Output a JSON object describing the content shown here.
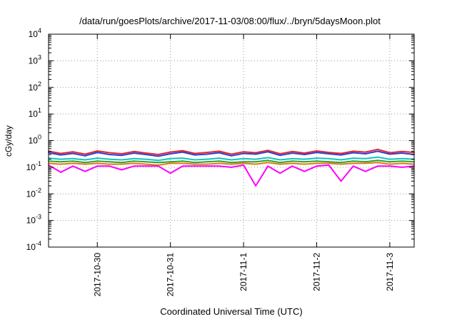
{
  "chart_data": {
    "type": "line",
    "title": "/data/run/goesPlots/archive/2017-11-03/08:00/flux/../bryn/5daysMoon.plot",
    "xlabel": "Coordinated Universal Time (UTC)",
    "ylabel": "cGy/day",
    "yscale": "log",
    "ylim": [
      0.0001,
      10000
    ],
    "xlim": [
      "2017-10-29 08:00",
      "2017-11-03 08:00"
    ],
    "grid": true,
    "y_ticks": [
      {
        "base": "10",
        "exp": "-4"
      },
      {
        "base": "10",
        "exp": "-3"
      },
      {
        "base": "10",
        "exp": "-2"
      },
      {
        "base": "10",
        "exp": "-1"
      },
      {
        "base": "10",
        "exp": "0"
      },
      {
        "base": "10",
        "exp": "1"
      },
      {
        "base": "10",
        "exp": "2"
      },
      {
        "base": "10",
        "exp": "3"
      },
      {
        "base": "10",
        "exp": "4"
      }
    ],
    "x_ticks": [
      {
        "label": "2017-10-30",
        "date": "2017-10-30 00:00"
      },
      {
        "label": "2017-10-31",
        "date": "2017-10-31 00:00"
      },
      {
        "label": "2017-11-1",
        "date": "2017-11-01 00:00"
      },
      {
        "label": "2017-11-2",
        "date": "2017-11-02 00:00"
      },
      {
        "label": "2017-11-3",
        "date": "2017-11-03 00:00"
      }
    ],
    "series": [
      {
        "color": "#e8222c",
        "x": [
          "2017-10-29 08:00",
          "2017-10-29 12:00",
          "2017-10-29 16:00",
          "2017-10-29 20:00",
          "2017-10-30 00:00",
          "2017-10-30 04:00",
          "2017-10-30 08:00",
          "2017-10-30 12:00",
          "2017-10-30 16:00",
          "2017-10-30 20:00",
          "2017-10-31 00:00",
          "2017-10-31 04:00",
          "2017-10-31 08:00",
          "2017-10-31 12:00",
          "2017-10-31 16:00",
          "2017-10-31 20:00",
          "2017-11-01 00:00",
          "2017-11-01 04:00",
          "2017-11-01 08:00",
          "2017-11-01 12:00",
          "2017-11-01 16:00",
          "2017-11-01 20:00",
          "2017-11-02 00:00",
          "2017-11-02 04:00",
          "2017-11-02 08:00",
          "2017-11-02 12:00",
          "2017-11-02 16:00",
          "2017-11-02 20:00",
          "2017-11-03 00:00",
          "2017-11-03 04:00",
          "2017-11-03 08:00"
        ],
        "values": [
          0.4,
          0.33,
          0.38,
          0.31,
          0.41,
          0.35,
          0.32,
          0.39,
          0.34,
          0.3,
          0.37,
          0.42,
          0.33,
          0.36,
          0.4,
          0.31,
          0.38,
          0.35,
          0.43,
          0.32,
          0.39,
          0.34,
          0.41,
          0.36,
          0.33,
          0.4,
          0.37,
          0.47,
          0.35,
          0.39,
          0.36
        ]
      },
      {
        "color": "#2a3fd4",
        "x": [
          "2017-10-29 08:00",
          "2017-10-29 12:00",
          "2017-10-29 16:00",
          "2017-10-29 20:00",
          "2017-10-30 00:00",
          "2017-10-30 04:00",
          "2017-10-30 08:00",
          "2017-10-30 12:00",
          "2017-10-30 16:00",
          "2017-10-30 20:00",
          "2017-10-31 00:00",
          "2017-10-31 04:00",
          "2017-10-31 08:00",
          "2017-10-31 12:00",
          "2017-10-31 16:00",
          "2017-10-31 20:00",
          "2017-11-01 00:00",
          "2017-11-01 04:00",
          "2017-11-01 08:00",
          "2017-11-01 12:00",
          "2017-11-01 16:00",
          "2017-11-01 20:00",
          "2017-11-02 00:00",
          "2017-11-02 04:00",
          "2017-11-02 08:00",
          "2017-11-02 12:00",
          "2017-11-02 16:00",
          "2017-11-02 20:00",
          "2017-11-03 00:00",
          "2017-11-03 04:00",
          "2017-11-03 08:00"
        ],
        "values": [
          0.35,
          0.29,
          0.33,
          0.27,
          0.36,
          0.3,
          0.28,
          0.34,
          0.3,
          0.26,
          0.32,
          0.37,
          0.29,
          0.31,
          0.35,
          0.27,
          0.33,
          0.31,
          0.38,
          0.28,
          0.34,
          0.3,
          0.36,
          0.32,
          0.29,
          0.35,
          0.32,
          0.4,
          0.31,
          0.34,
          0.3
        ]
      },
      {
        "color": "#14c3c3",
        "x": [
          "2017-10-29 08:00",
          "2017-10-29 12:00",
          "2017-10-29 16:00",
          "2017-10-29 20:00",
          "2017-10-30 00:00",
          "2017-10-30 04:00",
          "2017-10-30 08:00",
          "2017-10-30 12:00",
          "2017-10-30 16:00",
          "2017-10-30 20:00",
          "2017-10-31 00:00",
          "2017-10-31 04:00",
          "2017-10-31 08:00",
          "2017-10-31 12:00",
          "2017-10-31 16:00",
          "2017-10-31 20:00",
          "2017-11-01 00:00",
          "2017-11-01 04:00",
          "2017-11-01 08:00",
          "2017-11-01 12:00",
          "2017-11-01 16:00",
          "2017-11-01 20:00",
          "2017-11-02 00:00",
          "2017-11-02 04:00",
          "2017-11-02 08:00",
          "2017-11-02 12:00",
          "2017-11-02 16:00",
          "2017-11-02 20:00",
          "2017-11-03 00:00",
          "2017-11-03 04:00",
          "2017-11-03 08:00"
        ],
        "values": [
          0.22,
          0.2,
          0.21,
          0.19,
          0.22,
          0.2,
          0.19,
          0.21,
          0.2,
          0.18,
          0.21,
          0.22,
          0.19,
          0.2,
          0.22,
          0.19,
          0.21,
          0.2,
          0.23,
          0.19,
          0.21,
          0.2,
          0.22,
          0.21,
          0.19,
          0.22,
          0.21,
          0.24,
          0.2,
          0.21,
          0.2
        ]
      },
      {
        "color": "#2da12d",
        "x": [
          "2017-10-29 08:00",
          "2017-10-29 12:00",
          "2017-10-29 16:00",
          "2017-10-29 20:00",
          "2017-10-30 00:00",
          "2017-10-30 04:00",
          "2017-10-30 08:00",
          "2017-10-30 12:00",
          "2017-10-30 16:00",
          "2017-10-30 20:00",
          "2017-10-31 00:00",
          "2017-10-31 04:00",
          "2017-10-31 08:00",
          "2017-10-31 12:00",
          "2017-10-31 16:00",
          "2017-10-31 20:00",
          "2017-11-01 00:00",
          "2017-11-01 04:00",
          "2017-11-01 08:00",
          "2017-11-01 12:00",
          "2017-11-01 16:00",
          "2017-11-01 20:00",
          "2017-11-02 00:00",
          "2017-11-02 04:00",
          "2017-11-02 08:00",
          "2017-11-02 12:00",
          "2017-11-02 16:00",
          "2017-11-02 20:00",
          "2017-11-03 00:00",
          "2017-11-03 04:00",
          "2017-11-03 08:00"
        ],
        "values": [
          0.17,
          0.16,
          0.17,
          0.15,
          0.17,
          0.16,
          0.15,
          0.17,
          0.16,
          0.15,
          0.16,
          0.17,
          0.15,
          0.16,
          0.17,
          0.15,
          0.16,
          0.16,
          0.18,
          0.15,
          0.17,
          0.16,
          0.17,
          0.16,
          0.15,
          0.17,
          0.16,
          0.18,
          0.16,
          0.17,
          0.16
        ]
      },
      {
        "color": "#e07a10",
        "x": [
          "2017-10-29 08:00",
          "2017-10-29 12:00",
          "2017-10-29 16:00",
          "2017-10-29 20:00",
          "2017-10-30 00:00",
          "2017-10-30 04:00",
          "2017-10-30 08:00",
          "2017-10-30 12:00",
          "2017-10-30 16:00",
          "2017-10-30 20:00",
          "2017-10-31 00:00",
          "2017-10-31 04:00",
          "2017-10-31 08:00",
          "2017-10-31 12:00",
          "2017-10-31 16:00",
          "2017-10-31 20:00",
          "2017-11-01 00:00",
          "2017-11-01 04:00",
          "2017-11-01 08:00",
          "2017-11-01 12:00",
          "2017-11-01 16:00",
          "2017-11-01 20:00",
          "2017-11-02 00:00",
          "2017-11-02 04:00",
          "2017-11-02 08:00",
          "2017-11-02 12:00",
          "2017-11-02 16:00",
          "2017-11-02 20:00",
          "2017-11-03 00:00",
          "2017-11-03 04:00",
          "2017-11-03 08:00"
        ],
        "values": [
          0.14,
          0.13,
          0.14,
          0.13,
          0.14,
          0.13,
          0.13,
          0.14,
          0.13,
          0.12,
          0.14,
          0.14,
          0.13,
          0.13,
          0.14,
          0.13,
          0.14,
          0.13,
          0.15,
          0.13,
          0.14,
          0.13,
          0.14,
          0.14,
          0.13,
          0.14,
          0.14,
          0.15,
          0.13,
          0.14,
          0.13
        ]
      },
      {
        "color": "#ff00ff",
        "x": [
          "2017-10-29 08:00",
          "2017-10-29 12:00",
          "2017-10-29 16:00",
          "2017-10-29 20:00",
          "2017-10-30 00:00",
          "2017-10-30 04:00",
          "2017-10-30 08:00",
          "2017-10-30 12:00",
          "2017-10-30 16:00",
          "2017-10-30 20:00",
          "2017-10-31 00:00",
          "2017-10-31 04:00",
          "2017-10-31 08:00",
          "2017-10-31 12:00",
          "2017-10-31 16:00",
          "2017-10-31 20:00",
          "2017-11-01 00:00",
          "2017-11-01 04:00",
          "2017-11-01 08:00",
          "2017-11-01 12:00",
          "2017-11-01 16:00",
          "2017-11-01 20:00",
          "2017-11-02 00:00",
          "2017-11-02 04:00",
          "2017-11-02 08:00",
          "2017-11-02 12:00",
          "2017-11-02 16:00",
          "2017-11-02 20:00",
          "2017-11-03 00:00",
          "2017-11-03 04:00",
          "2017-11-03 08:00"
        ],
        "values": [
          0.12,
          0.065,
          0.11,
          0.07,
          0.11,
          0.11,
          0.08,
          0.11,
          0.11,
          0.11,
          0.06,
          0.11,
          0.11,
          0.11,
          0.11,
          0.1,
          0.12,
          0.02,
          0.11,
          0.06,
          0.11,
          0.07,
          0.11,
          0.12,
          0.03,
          0.11,
          0.07,
          0.11,
          0.11,
          0.1,
          0.11
        ]
      }
    ]
  }
}
